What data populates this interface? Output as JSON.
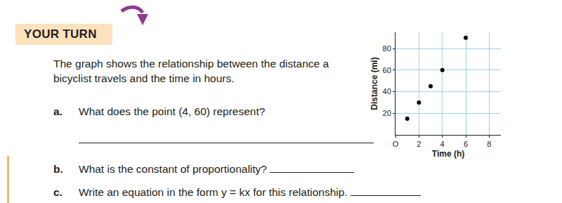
{
  "banner": "YOUR TURN",
  "intro": "The graph shows the relationship between the distance a bicyclist travels and the time in hours.",
  "questions": [
    {
      "label": "a.",
      "text": "What does the point (4, 60) represent?"
    },
    {
      "label": "b.",
      "text": "What is the constant of proportionality?"
    },
    {
      "label": "c.",
      "text": "Write an equation in the form y = kx for this relationship."
    }
  ],
  "chart_data": {
    "type": "scatter",
    "x": [
      1,
      2,
      3,
      4,
      6
    ],
    "values": [
      15,
      30,
      45,
      60,
      90
    ],
    "xlabel": "Time (h)",
    "ylabel": "Distance (mi)",
    "xlim": [
      0,
      9
    ],
    "ylim": [
      0,
      95
    ],
    "xticks": [
      {
        "value": 0,
        "label": "O"
      },
      2,
      4,
      6,
      8
    ],
    "yticks": [
      20,
      40,
      60,
      80
    ],
    "grid": true,
    "color": "#000000",
    "marker": "circle"
  }
}
